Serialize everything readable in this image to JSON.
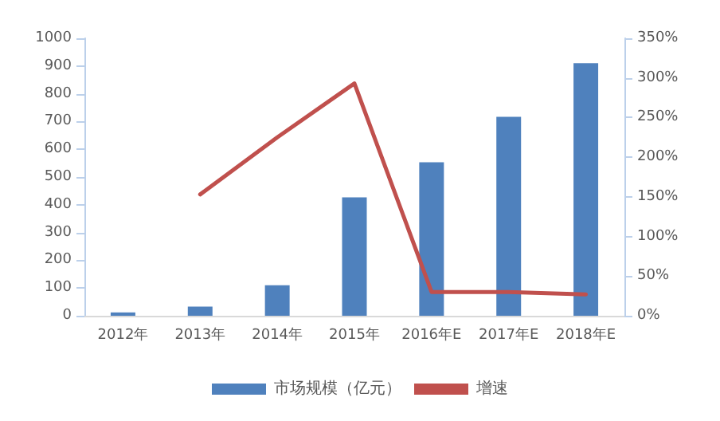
{
  "chart_data": {
    "type": "bar",
    "categories": [
      "2012年",
      "2013年",
      "2014年",
      "2015年",
      "2016年E",
      "2017年E",
      "2018年E"
    ],
    "series": [
      {
        "name": "市场规模（亿元）",
        "color": "#4f81bd",
        "values": [
          12,
          33,
          110,
          427,
          553,
          717,
          910
        ]
      },
      {
        "name": "增速",
        "type": "line",
        "axis": "y2",
        "color": "#c0504d",
        "values": [
          null,
          153,
          225,
          293,
          30,
          30,
          27
        ]
      }
    ],
    "ylim": [
      0,
      1000
    ],
    "yticks": [
      0,
      100,
      200,
      300,
      400,
      500,
      600,
      700,
      800,
      900,
      1000
    ],
    "y2lim": [
      0,
      350
    ],
    "y2ticks": [
      {
        "value": 0,
        "label": "0%"
      },
      {
        "value": 50,
        "label": "50%"
      },
      {
        "value": 100,
        "label": "100%"
      },
      {
        "value": 150,
        "label": "150%"
      },
      {
        "value": 200,
        "label": "200%"
      },
      {
        "value": 250,
        "label": "250%"
      },
      {
        "value": 300,
        "label": "300%"
      },
      {
        "value": 350,
        "label": "350%"
      }
    ],
    "grid": false,
    "legend": "bottom",
    "marker": "none",
    "line_style": "solid"
  }
}
